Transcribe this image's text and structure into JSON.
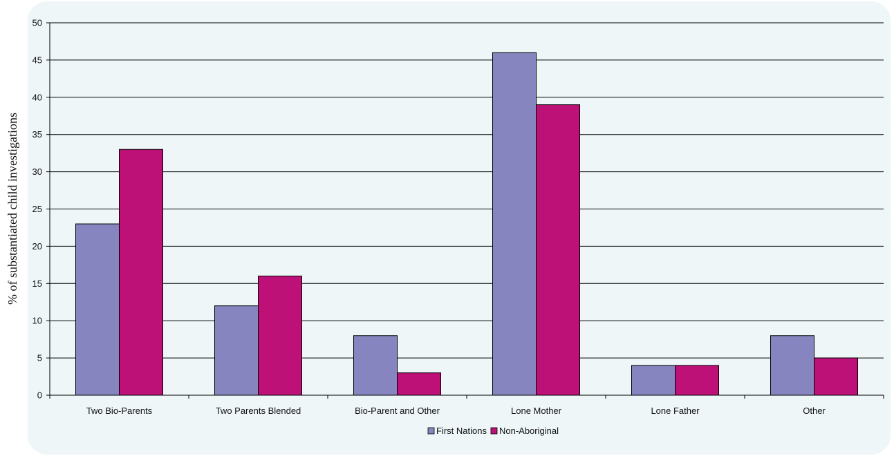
{
  "chart_data": {
    "type": "bar",
    "title": "",
    "xlabel": "",
    "ylabel": "% of substantiated child investigations",
    "ylim": [
      0,
      50
    ],
    "yticks": [
      0,
      5,
      10,
      15,
      20,
      25,
      30,
      35,
      40,
      45,
      50
    ],
    "grid": true,
    "legend_position": "bottom",
    "categories": [
      "Two Bio-Parents",
      "Two Parents Blended",
      "Bio-Parent and Other",
      "Lone Mother",
      "Lone Father",
      "Other"
    ],
    "series": [
      {
        "name": "First Nations",
        "color": "#8785bf",
        "values": [
          23,
          12,
          8,
          46,
          4,
          8
        ]
      },
      {
        "name": "Non-Aboriginal",
        "color": "#bd1177",
        "values": [
          33,
          16,
          3,
          39,
          4,
          5
        ]
      }
    ]
  }
}
